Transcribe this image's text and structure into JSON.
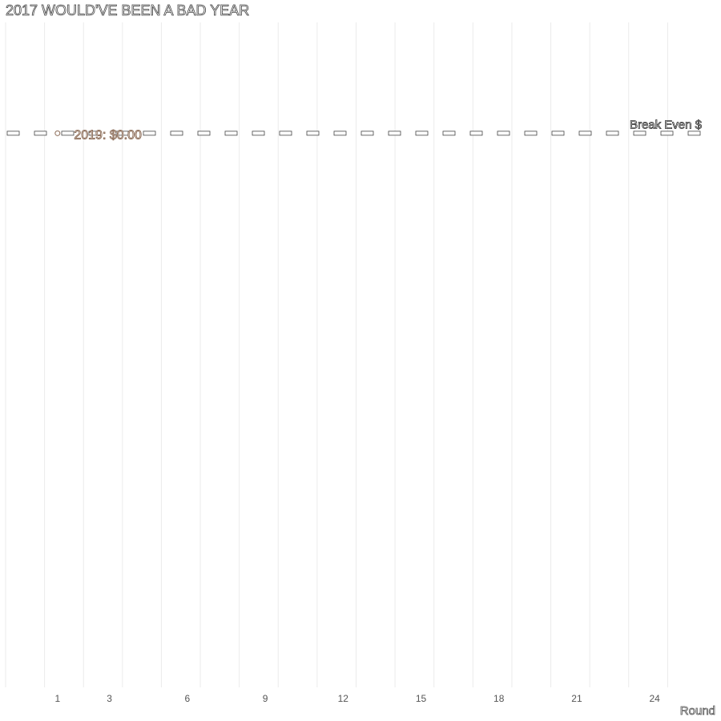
{
  "chart_data": {
    "type": "line",
    "title": "2017 WOULD'VE BEEN A BAD YEAR",
    "xlabel": "Round",
    "ylabel": "",
    "x_tick_labels": [
      "1",
      "3",
      "6",
      "9",
      "12",
      "15",
      "18",
      "21",
      "24"
    ],
    "x_ticks": [
      1,
      3,
      6,
      9,
      12,
      15,
      18,
      21,
      24
    ],
    "xlim": [
      -1,
      26
    ],
    "ylim": [
      -10,
      2
    ],
    "grid": "vertical-only",
    "break_even": {
      "label": "Break Even $",
      "value": 0
    },
    "annotations": [
      {
        "text": "2019: $0.00",
        "x": 3,
        "y": 0,
        "color": "#8a6a55"
      }
    ],
    "series": [
      {
        "values": [
          {
            "x": 1,
            "y": 0
          }
        ],
        "color": "#8a6a55"
      }
    ]
  },
  "colors": {
    "grid": "#ebebeb",
    "dash": "#444444",
    "accent": "#8a6a55"
  }
}
